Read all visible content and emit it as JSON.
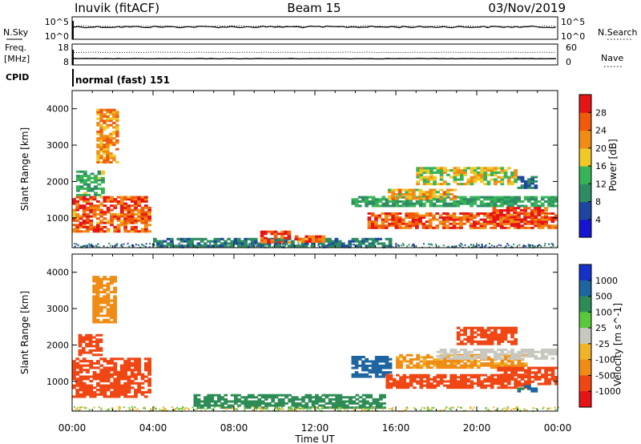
{
  "header": {
    "station": "Inuvik (fitACF)",
    "beam": "Beam 15",
    "date": "03/Nov/2019"
  },
  "strip_panels": {
    "nsky": {
      "label": "N.Sky",
      "tick_top": "10^5",
      "tick_bottom": "10^0"
    },
    "nsearch": {
      "label": "N.Search",
      "tick_top": "10^5",
      "tick_bottom": "10^0"
    },
    "freq": {
      "label_line1": "Freq.",
      "label_line2": "[MHz]",
      "tick_top": "18",
      "tick_bottom": "8"
    },
    "nave": {
      "label": "Nave",
      "tick_top": "60",
      "tick_bottom": "0"
    },
    "cpid": {
      "label": "CPID",
      "value": "normal (fast) 151"
    }
  },
  "colors": {
    "power_scale": [
      "#1414d2",
      "#1e46a0",
      "#2d8c64",
      "#37b455",
      "#f0c828",
      "#f08c14",
      "#f05a0a",
      "#e61414"
    ],
    "velocity_scale": [
      "#e61414",
      "#f04614",
      "#f08c14",
      "#f0b428",
      "#c8c8c0",
      "#5ac83c",
      "#2d8c55",
      "#1e64a0",
      "#1432c8"
    ]
  },
  "chart_data": [
    {
      "type": "heatmap",
      "panel": "power",
      "ylabel": "Slant Range [km]",
      "xlabel": "Time UT",
      "x_ticks": [
        "00:00",
        "04:00",
        "08:00",
        "12:00",
        "16:00",
        "20:00",
        "00:00"
      ],
      "y_ticks": [
        "1000",
        "2000",
        "3000",
        "4000"
      ],
      "ylim": [
        180,
        4500
      ],
      "colorbar_label": "Power [dB]",
      "colorbar_ticks": [
        "4",
        "8",
        "12",
        "16",
        "20",
        "24",
        "28"
      ],
      "colorbar_range": [
        0,
        32
      ],
      "regions": [
        {
          "t": [
            0.0,
            3.9
          ],
          "r": [
            600,
            1600
          ],
          "v": 26
        },
        {
          "t": [
            0.2,
            1.6
          ],
          "r": [
            1600,
            2300
          ],
          "v": 13
        },
        {
          "t": [
            1.2,
            2.3
          ],
          "r": [
            2500,
            4000
          ],
          "v": 22
        },
        {
          "t": [
            4.0,
            15.8
          ],
          "r": [
            200,
            450
          ],
          "v": 9
        },
        {
          "t": [
            9.3,
            10.8
          ],
          "r": [
            300,
            650
          ],
          "v": 26
        },
        {
          "t": [
            11.0,
            12.5
          ],
          "r": [
            320,
            520
          ],
          "v": 25
        },
        {
          "t": [
            13.8,
            24.0
          ],
          "r": [
            1300,
            1600
          ],
          "v": 12
        },
        {
          "t": [
            14.6,
            24.0
          ],
          "r": [
            700,
            1150
          ],
          "v": 27
        },
        {
          "t": [
            15.6,
            19.0
          ],
          "r": [
            1500,
            1800
          ],
          "v": 20
        },
        {
          "t": [
            17.0,
            22.0
          ],
          "r": [
            1900,
            2400
          ],
          "v": 18
        },
        {
          "t": [
            20.6,
            23.5
          ],
          "r": [
            800,
            1300
          ],
          "v": 28
        },
        {
          "t": [
            22.0,
            23.0
          ],
          "r": [
            1800,
            2150
          ],
          "v": 8
        }
      ]
    },
    {
      "type": "heatmap",
      "panel": "velocity",
      "ylabel": "Slant Range [km]",
      "xlabel": "Time UT",
      "x_ticks": [
        "00:00",
        "04:00",
        "08:00",
        "12:00",
        "16:00",
        "20:00",
        "00:00"
      ],
      "y_ticks": [
        "1000",
        "2000",
        "3000",
        "4000"
      ],
      "ylim": [
        180,
        4500
      ],
      "colorbar_label": "Velocity [m s^-1]",
      "colorbar_ticks": [
        "1000",
        "500",
        "100",
        "25",
        "-25",
        "-100",
        "-500",
        "-1000"
      ],
      "regions": [
        {
          "t": [
            0.0,
            3.9
          ],
          "r": [
            550,
            1650
          ],
          "v": -300
        },
        {
          "t": [
            0.3,
            1.5
          ],
          "r": [
            1700,
            2300
          ],
          "v": -150
        },
        {
          "t": [
            1.0,
            2.2
          ],
          "r": [
            2600,
            3900
          ],
          "v": -80
        },
        {
          "t": [
            6.0,
            15.5
          ],
          "r": [
            250,
            650
          ],
          "v": 150
        },
        {
          "t": [
            13.8,
            15.8
          ],
          "r": [
            1100,
            1700
          ],
          "v": 700
        },
        {
          "t": [
            15.5,
            22.5
          ],
          "r": [
            800,
            1200
          ],
          "v": -400
        },
        {
          "t": [
            16.0,
            22.5
          ],
          "r": [
            1350,
            1750
          ],
          "v": -60
        },
        {
          "t": [
            18.0,
            24.0
          ],
          "r": [
            1600,
            1900
          ],
          "v": 0
        },
        {
          "t": [
            19.0,
            22.0
          ],
          "r": [
            2000,
            2500
          ],
          "v": -200
        },
        {
          "t": [
            21.0,
            24.0
          ],
          "r": [
            900,
            1400
          ],
          "v": -250
        },
        {
          "t": [
            22.0,
            23.0
          ],
          "r": [
            700,
            900
          ],
          "v": 600
        }
      ]
    }
  ],
  "lines": {
    "nsky_level": 0.45,
    "nsearch_level": 0.42,
    "freq_level": 0.72,
    "nave_level": 0.3
  }
}
